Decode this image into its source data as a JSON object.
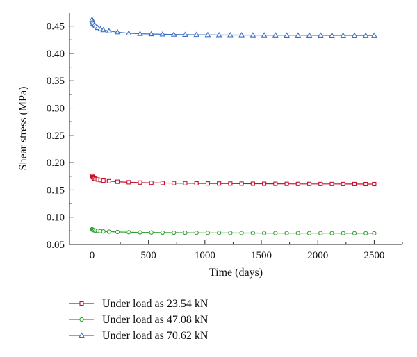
{
  "chart_data": {
    "type": "line",
    "title": "",
    "xlabel": "Time (days)",
    "ylabel": "Shear stress (MPa)",
    "xlim": [
      -200,
      2750
    ],
    "ylim": [
      0.05,
      0.475
    ],
    "xticks": [
      0,
      500,
      1000,
      1500,
      2000,
      2500
    ],
    "xtick_labels": [
      "0",
      "500",
      "1000",
      "1500",
      "2000",
      "2500"
    ],
    "yticks": [
      0.05,
      0.1,
      0.15,
      0.2,
      0.25,
      0.3,
      0.35,
      0.4,
      0.45
    ],
    "ytick_labels": [
      "0.05",
      "0.10",
      "0.15",
      "0.20",
      "0.25",
      "0.30",
      "0.35",
      "0.40",
      "0.45"
    ],
    "grid": false,
    "legend_position": "bottom",
    "series": [
      {
        "name": "Under load as 23.54 kN",
        "color": "#c8102e",
        "marker": "square",
        "x": [
          0,
          5,
          10,
          20,
          30,
          50,
          75,
          100,
          150,
          225,
          325,
          425,
          525,
          625,
          725,
          825,
          925,
          1025,
          1125,
          1225,
          1325,
          1425,
          1525,
          1625,
          1725,
          1825,
          1925,
          2025,
          2125,
          2225,
          2325,
          2425,
          2500
        ],
        "y": [
          0.176,
          0.174,
          0.173,
          0.171,
          0.17,
          0.169,
          0.168,
          0.167,
          0.166,
          0.165,
          0.164,
          0.1635,
          0.163,
          0.1627,
          0.1624,
          0.1622,
          0.162,
          0.1618,
          0.1617,
          0.1616,
          0.1615,
          0.1614,
          0.1613,
          0.1612,
          0.1611,
          0.161,
          0.161,
          0.1609,
          0.1609,
          0.1608,
          0.1608,
          0.1607,
          0.1607
        ]
      },
      {
        "name": "Under load as 47.08 kN",
        "color": "#2ca02c",
        "marker": "circle",
        "x": [
          0,
          5,
          10,
          20,
          30,
          50,
          75,
          100,
          150,
          225,
          325,
          425,
          525,
          625,
          725,
          825,
          925,
          1025,
          1125,
          1225,
          1325,
          1425,
          1525,
          1625,
          1725,
          1825,
          1925,
          2025,
          2125,
          2225,
          2325,
          2425,
          2500
        ],
        "y": [
          0.078,
          0.077,
          0.0765,
          0.076,
          0.0755,
          0.075,
          0.0745,
          0.074,
          0.0735,
          0.073,
          0.0725,
          0.0722,
          0.072,
          0.0718,
          0.0716,
          0.0715,
          0.0714,
          0.0713,
          0.0712,
          0.0711,
          0.071,
          0.071,
          0.0709,
          0.0709,
          0.0708,
          0.0708,
          0.0707,
          0.0707,
          0.0707,
          0.0706,
          0.0706,
          0.0706,
          0.0705
        ]
      },
      {
        "name": "Under load as 70.62 kN",
        "color": "#3c6fc4",
        "marker": "triangle",
        "x": [
          0,
          5,
          10,
          20,
          30,
          50,
          75,
          100,
          150,
          225,
          325,
          425,
          525,
          625,
          725,
          825,
          925,
          1025,
          1125,
          1225,
          1325,
          1425,
          1525,
          1625,
          1725,
          1825,
          1925,
          2025,
          2125,
          2225,
          2325,
          2425,
          2500
        ],
        "y": [
          0.462,
          0.458,
          0.455,
          0.452,
          0.45,
          0.447,
          0.445,
          0.443,
          0.441,
          0.439,
          0.437,
          0.436,
          0.4355,
          0.435,
          0.4347,
          0.4344,
          0.4342,
          0.434,
          0.4338,
          0.4337,
          0.4336,
          0.4335,
          0.4334,
          0.4333,
          0.4332,
          0.4332,
          0.4331,
          0.4331,
          0.433,
          0.433,
          0.433,
          0.4329,
          0.4329
        ]
      }
    ]
  }
}
